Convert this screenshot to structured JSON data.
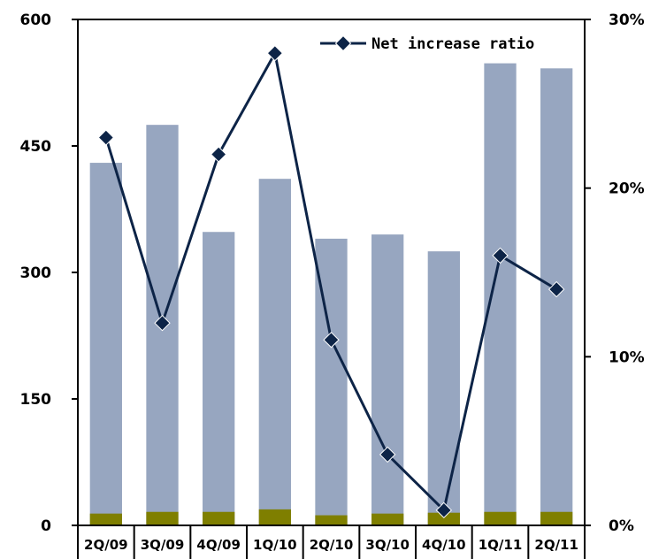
{
  "chart_data": {
    "type": "bar",
    "categories": [
      "2Q/09",
      "3Q/09",
      "4Q/09",
      "1Q/10",
      "2Q/10",
      "3Q/10",
      "4Q/10",
      "1Q/11",
      "2Q/11"
    ],
    "series": [
      {
        "values": [
          430,
          475,
          348,
          411,
          340,
          345,
          325,
          548,
          542
        ],
        "color": "#97a6c0",
        "axis": "left"
      },
      {
        "values": [
          14,
          16,
          16,
          19,
          12,
          14,
          15,
          16,
          16
        ],
        "color": "#7f7f00",
        "axis": "left"
      },
      {
        "name": "Net increase ratio",
        "type": "line",
        "values": [
          23,
          12,
          22,
          28,
          11,
          4.2,
          0.9,
          16,
          14
        ],
        "color": "#0d2447",
        "axis": "right"
      }
    ],
    "y_left": {
      "ylim": [
        0,
        600
      ],
      "ticks": [
        0,
        150,
        300,
        450,
        600
      ]
    },
    "y_right": {
      "ylim": [
        0,
        30
      ],
      "ticks": [
        0,
        10,
        20,
        30
      ],
      "tick_labels": [
        "0%",
        "10%",
        "20%",
        "30%"
      ]
    },
    "legend": {
      "position": "top-right",
      "entries": [
        "Net increase ratio"
      ]
    },
    "grid": false
  }
}
